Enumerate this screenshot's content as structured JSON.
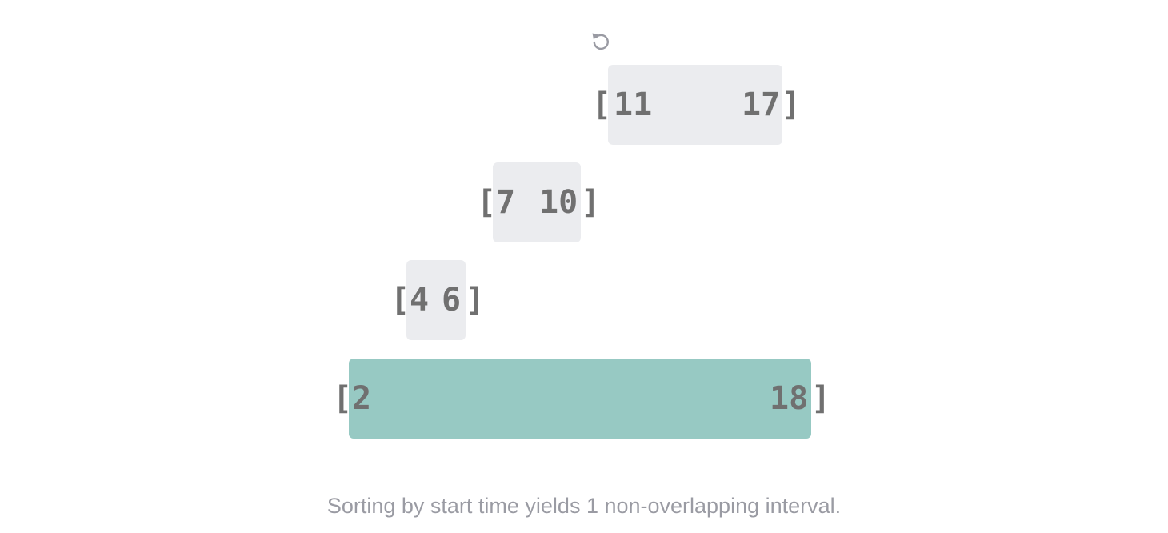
{
  "replay_icon": "replay-icon",
  "colors": {
    "selected_fill": "#97c9c3",
    "unselected_fill": "#ebecef",
    "text": "#707070",
    "caption": "#9a9ba3",
    "icon": "#9a9ba3"
  },
  "intervals": [
    {
      "start": "11",
      "end": "17",
      "open_bracket": "[",
      "close_bracket": "]",
      "selected": false
    },
    {
      "start": "7",
      "end": "10",
      "open_bracket": "[",
      "close_bracket": "]",
      "selected": false
    },
    {
      "start": "4",
      "end": "6",
      "open_bracket": "[",
      "close_bracket": "]",
      "selected": false
    },
    {
      "start": "2",
      "end": "18",
      "open_bracket": "[",
      "close_bracket": "]",
      "selected": true
    }
  ],
  "caption": "Sorting by start time yields 1 non-overlapping interval."
}
